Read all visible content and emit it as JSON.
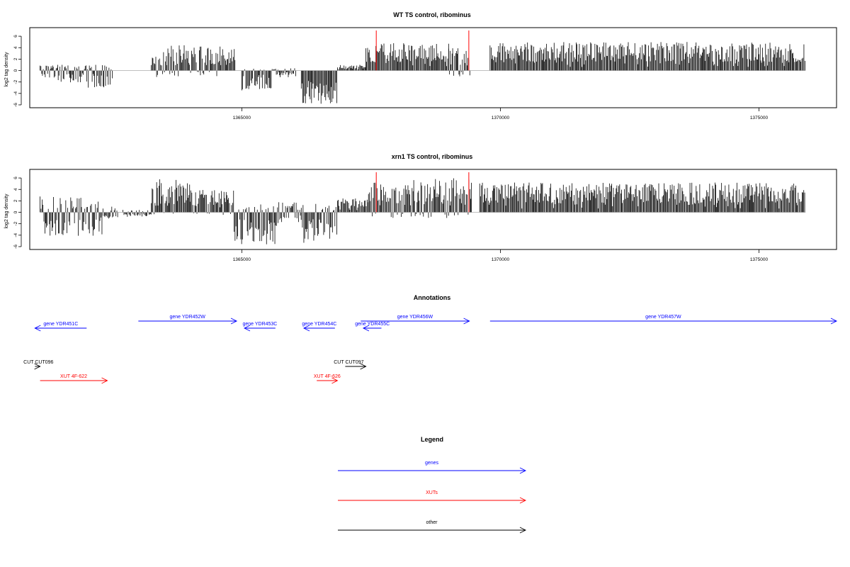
{
  "chart_data": [
    {
      "type": "bar",
      "title": "WT TS control, ribominus",
      "ylabel": "log2 tag density",
      "xlim": [
        1360900,
        1376500
      ],
      "ylim": [
        -6.5,
        7.5
      ],
      "xticks": [
        1365000,
        1370000,
        1375000
      ],
      "xtick_labels": [
        "1365000",
        "1370000",
        "1375000"
      ],
      "yticks": [
        -6,
        -4,
        -2,
        0,
        2,
        4,
        6
      ],
      "ytick_labels": [
        "-6",
        "-4",
        "-2",
        "0",
        "2",
        "4",
        "6"
      ],
      "grid": false,
      "markers": [
        {
          "x": 1367600,
          "y": 7.0,
          "color": "#ff0000"
        },
        {
          "x": 1369390,
          "y": 7.0,
          "color": "#ff0000"
        }
      ],
      "segments": [
        {
          "x0": 1361100,
          "x1": 1361450,
          "lo": -1.5,
          "hi": 1.0
        },
        {
          "x0": 1361450,
          "x1": 1362000,
          "lo": -2.2,
          "hi": 1.0
        },
        {
          "x0": 1362000,
          "x1": 1362500,
          "lo": -3.0,
          "hi": 1.0
        },
        {
          "x0": 1363250,
          "x1": 1363550,
          "lo": -1.2,
          "hi": 3.3
        },
        {
          "x0": 1363550,
          "x1": 1364200,
          "lo": -1.0,
          "hi": 4.5
        },
        {
          "x0": 1364200,
          "x1": 1364870,
          "lo": -1.0,
          "hi": 4.2
        },
        {
          "x0": 1365000,
          "x1": 1365600,
          "lo": -3.5,
          "hi": 0.5
        },
        {
          "x0": 1365600,
          "x1": 1366050,
          "lo": -1.2,
          "hi": 0.5
        },
        {
          "x0": 1366150,
          "x1": 1366850,
          "lo": -6.0,
          "hi": 0
        },
        {
          "x0": 1366850,
          "x1": 1367400,
          "lo": 0,
          "hi": 1.0
        },
        {
          "x0": 1367400,
          "x1": 1369000,
          "lo": 0,
          "hi": 4.8
        },
        {
          "x0": 1369000,
          "x1": 1369420,
          "lo": -1.2,
          "hi": 4.0
        },
        {
          "x0": 1369800,
          "x1": 1375900,
          "lo": 0,
          "hi": 5.0
        }
      ]
    },
    {
      "type": "bar",
      "title": "xrn1 TS control, ribominus",
      "ylabel": "log2 tag density",
      "xlim": [
        1360900,
        1376500
      ],
      "ylim": [
        -6.5,
        7.5
      ],
      "xticks": [
        1365000,
        1370000,
        1375000
      ],
      "xtick_labels": [
        "1365000",
        "1370000",
        "1375000"
      ],
      "yticks": [
        -6,
        -4,
        -2,
        0,
        2,
        4,
        6
      ],
      "ytick_labels": [
        "-6",
        "-4",
        "-2",
        "0",
        "2",
        "4",
        "6"
      ],
      "grid": false,
      "markers": [
        {
          "x": 1367600,
          "y": 7.0,
          "color": "#ff0000"
        },
        {
          "x": 1369390,
          "y": 7.0,
          "color": "#ff0000"
        }
      ],
      "segments": [
        {
          "x0": 1361100,
          "x1": 1362300,
          "lo": -4.5,
          "hi": 2.8
        },
        {
          "x0": 1362300,
          "x1": 1362600,
          "lo": -1.2,
          "hi": 1.0
        },
        {
          "x0": 1362700,
          "x1": 1363250,
          "lo": -0.8,
          "hi": 0.5
        },
        {
          "x0": 1363250,
          "x1": 1364000,
          "lo": -0.5,
          "hi": 5.8
        },
        {
          "x0": 1364000,
          "x1": 1364850,
          "lo": -0.5,
          "hi": 4.0
        },
        {
          "x0": 1364850,
          "x1": 1365700,
          "lo": -5.6,
          "hi": 1.5
        },
        {
          "x0": 1365700,
          "x1": 1366150,
          "lo": -2.5,
          "hi": 2.0
        },
        {
          "x0": 1366150,
          "x1": 1366850,
          "lo": -6.0,
          "hi": 1.5
        },
        {
          "x0": 1366850,
          "x1": 1367450,
          "lo": 0,
          "hi": 2.5
        },
        {
          "x0": 1367450,
          "x1": 1369450,
          "lo": -1.0,
          "hi": 6.0
        },
        {
          "x0": 1369600,
          "x1": 1375900,
          "lo": 0,
          "hi": 5.2
        }
      ]
    }
  ],
  "annotations": {
    "title": "Annotations",
    "features": [
      {
        "label": "gene YDR451C",
        "x_start": 1362000,
        "x_end": 1361000,
        "row": "gene-low",
        "color": "#0000ff"
      },
      {
        "label": "gene YDR452W",
        "x_start": 1363000,
        "x_end": 1364900,
        "row": "gene-high",
        "color": "#0000ff"
      },
      {
        "label": "gene YDR453C",
        "x_start": 1365650,
        "x_end": 1365050,
        "row": "gene-low",
        "color": "#0000ff"
      },
      {
        "label": "gene YDR454C",
        "x_start": 1366800,
        "x_end": 1366200,
        "row": "gene-low",
        "color": "#0000ff"
      },
      {
        "label": "gene YDR455C",
        "x_start": 1367700,
        "x_end": 1367350,
        "row": "gene-low",
        "color": "#0000ff"
      },
      {
        "label": "gene YDR456W",
        "x_start": 1367300,
        "x_end": 1369400,
        "row": "gene-high",
        "color": "#0000ff"
      },
      {
        "label": "gene YDR457W",
        "x_start": 1369800,
        "x_end": 1376500,
        "row": "gene-high",
        "color": "#0000ff"
      },
      {
        "label": "CUT CUT096",
        "x_start": 1361000,
        "x_end": 1361100,
        "row": "cut",
        "color": "#000000"
      },
      {
        "label": "CUT CUT097",
        "x_start": 1367000,
        "x_end": 1367400,
        "row": "cut",
        "color": "#000000"
      },
      {
        "label": "XUT 4F-622",
        "x_start": 1361100,
        "x_end": 1362400,
        "row": "xut",
        "color": "#ff0000"
      },
      {
        "label": "XUT 4F-626",
        "x_start": 1366450,
        "x_end": 1366850,
        "row": "xut",
        "color": "#ff0000"
      }
    ]
  },
  "legend": {
    "title": "Legend",
    "items": [
      {
        "label": "genes",
        "color": "#0000ff"
      },
      {
        "label": "XUTs",
        "color": "#ff0000"
      },
      {
        "label": "other",
        "color": "#000000"
      }
    ]
  }
}
